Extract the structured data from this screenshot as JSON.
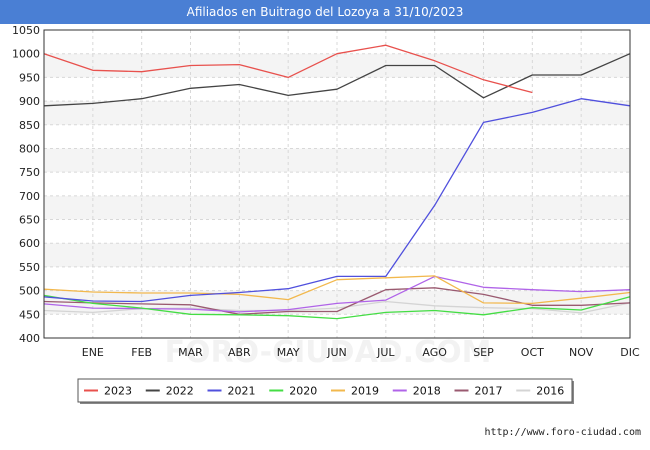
{
  "chart_data": {
    "type": "line",
    "title": "Afiliados en Buitrago del Lozoya a 31/10/2023",
    "categories": [
      "",
      "ENE",
      "FEB",
      "MAR",
      "ABR",
      "MAY",
      "JUN",
      "JUL",
      "AGO",
      "SEP",
      "OCT",
      "NOV",
      "DIC"
    ],
    "ylim": [
      400,
      1050
    ],
    "yticks": [
      400,
      450,
      500,
      550,
      600,
      650,
      700,
      750,
      800,
      850,
      900,
      950,
      1000,
      1050
    ],
    "grid": true,
    "legend_position": "bottom",
    "watermark": "FORO-CIUDAD.COM",
    "source": "http://www.foro-ciudad.com",
    "series": [
      {
        "name": "2023",
        "color": "#e8514d",
        "values": [
          1000,
          965,
          962,
          975,
          977,
          950,
          1000,
          1018,
          985,
          945,
          918,
          null,
          null
        ]
      },
      {
        "name": "2022",
        "color": "#444444",
        "values": [
          890,
          895,
          905,
          927,
          935,
          912,
          925,
          975,
          975,
          907,
          955,
          955,
          1000
        ]
      },
      {
        "name": "2021",
        "color": "#5050dd",
        "values": [
          487,
          478,
          477,
          490,
          496,
          504,
          530,
          530,
          680,
          855,
          876,
          905,
          890
        ]
      },
      {
        "name": "2020",
        "color": "#44dd44",
        "values": [
          490,
          473,
          463,
          450,
          449,
          447,
          441,
          454,
          458,
          449,
          464,
          459,
          487
        ]
      },
      {
        "name": "2019",
        "color": "#f2b84d",
        "values": [
          503,
          497,
          495,
          495,
          492,
          481,
          523,
          527,
          531,
          474,
          473,
          484,
          496
        ]
      },
      {
        "name": "2018",
        "color": "#b064e8",
        "values": [
          472,
          463,
          462,
          461,
          455,
          460,
          473,
          480,
          530,
          507,
          502,
          498,
          502
        ]
      },
      {
        "name": "2017",
        "color": "#9a5a70",
        "values": [
          477,
          474,
          472,
          470,
          450,
          456,
          456,
          502,
          506,
          492,
          469,
          469,
          474
        ]
      },
      {
        "name": "2016",
        "color": "#d4d4d4",
        "values": [
          458,
          454,
          462,
          463,
          458,
          458,
          463,
          477,
          468,
          464,
          462,
          453,
          474
        ]
      }
    ]
  }
}
